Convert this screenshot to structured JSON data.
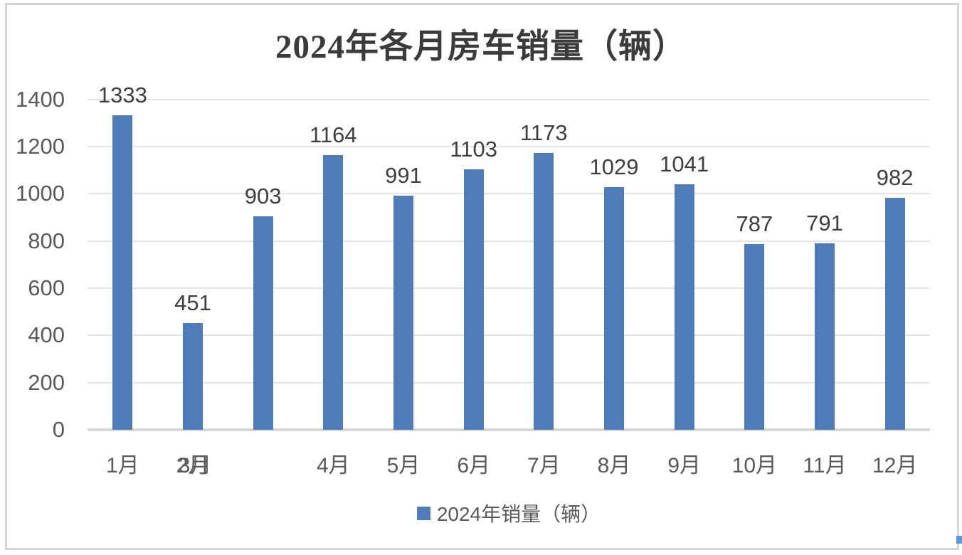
{
  "chart_data": {
    "type": "bar",
    "title": "2024年各月房车销量（辆）",
    "categories": [
      "1月",
      "2月",
      "3月",
      "4月",
      "5月",
      "6月",
      "7月",
      "8月",
      "9月",
      "10月",
      "11月",
      "12月"
    ],
    "series": [
      {
        "name": "2024年销量（辆）",
        "values": [
          1333,
          451,
          903,
          1164,
          991,
          1103,
          1173,
          1029,
          1041,
          787,
          791,
          982
        ]
      }
    ],
    "data_labels_shown": true,
    "xlabel": "",
    "ylabel": "",
    "ylim": [
      0,
      1400
    ],
    "y_ticks": [
      0,
      200,
      400,
      600,
      800,
      1000,
      1200,
      1400
    ],
    "grid": "horizontal",
    "legend_position": "bottom",
    "legend_label": "2024年销量（辆）",
    "bar_color": "#4f7cb8",
    "axis_label_color": "#595959",
    "data_label_color": "#3f3f3f",
    "gridline_color": "#e5e5e5",
    "x_label_slots": [
      0,
      1,
      1.03,
      3,
      4,
      5,
      6,
      7,
      8,
      9,
      10,
      11
    ],
    "x_axis_quirk": "2月 and 3月 labels overlap at the second slot; third bar has no label beneath it"
  },
  "artifact": {
    "color": "#5b9bd5"
  }
}
